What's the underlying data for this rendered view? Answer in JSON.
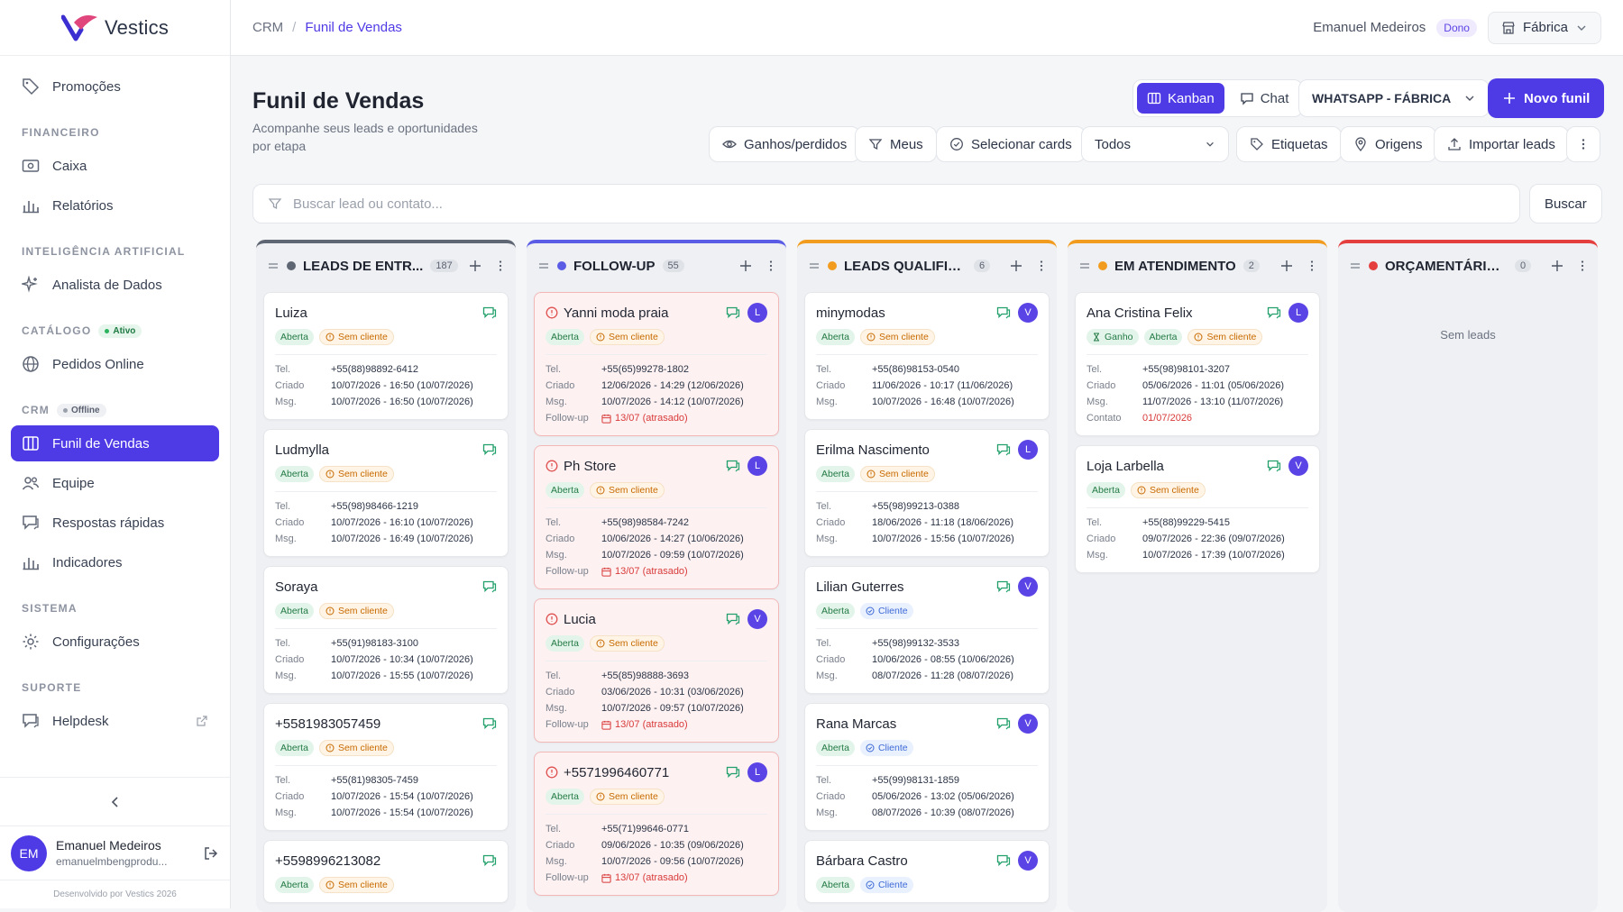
{
  "app": {
    "logo_text": "Vestics",
    "credit": "Desenvolvido por Vestics 2026"
  },
  "sidebar": {
    "items": [
      {
        "label": "Promoções",
        "icon": "tag-icon"
      },
      {
        "section": "FINANCEIRO"
      },
      {
        "label": "Caixa",
        "icon": "cash-icon"
      },
      {
        "label": "Relatórios",
        "icon": "bar-chart-icon"
      },
      {
        "section": "INTELIGÊNCIA ARTIFICIAL"
      },
      {
        "label": "Analista de Dados",
        "icon": "sparkles-icon"
      },
      {
        "section": "CATÁLOGO",
        "badge": "Ativo"
      },
      {
        "label": "Pedidos Online",
        "icon": "globe-icon"
      },
      {
        "section": "CRM",
        "badge": "Offline"
      },
      {
        "label": "Funil de Vendas",
        "icon": "kanban-icon",
        "active": true
      },
      {
        "label": "Equipe",
        "icon": "users-icon"
      },
      {
        "label": "Respostas rápidas",
        "icon": "message-icon"
      },
      {
        "label": "Indicadores",
        "icon": "bar-chart-icon"
      },
      {
        "section": "SISTEMA"
      },
      {
        "label": "Configurações",
        "icon": "gear-icon"
      },
      {
        "section": "SUPORTE"
      },
      {
        "label": "Helpdesk",
        "icon": "message-icon",
        "external": true
      }
    ],
    "user": {
      "initials": "EM",
      "name": "Emanuel Medeiros",
      "email": "emanuelmbengprodu..."
    }
  },
  "topbar": {
    "breadcrumb": [
      "CRM",
      "Funil de Vendas"
    ],
    "user_name": "Emanuel Medeiros",
    "role": "Dono",
    "store": "Fábrica"
  },
  "page": {
    "title": "Funil de Vendas",
    "subtitle": "Acompanhe seus leads e oportunidades por etapa",
    "view_kanban": "Kanban",
    "view_chat": "Chat",
    "funnel_select": "WHATSAPP - FÁBRICA",
    "new_funnel": "Novo funil",
    "filters": {
      "won_lost": "Ganhos/perdidos",
      "mine": "Meus",
      "select_cards": "Selecionar cards",
      "all": "Todos",
      "labels": "Etiquetas",
      "origins": "Origens",
      "import": "Importar leads"
    },
    "search_placeholder": "Buscar lead ou contato...",
    "search_button": "Buscar"
  },
  "labels": {
    "tel": "Tel.",
    "created": "Criado",
    "msg": "Msg.",
    "followup": "Follow-up",
    "contact": "Contato",
    "no_leads": "Sem leads"
  },
  "colors": {
    "accent": "#4f3be6",
    "chat": "#22a06b",
    "overdue": "#d93b3b"
  },
  "columns": [
    {
      "title": "LEADS DE ENTR...",
      "count": "187",
      "color": "#5f6673",
      "dot": "#5f6673",
      "cards": [
        {
          "name": "Luiza",
          "tags": [
            [
              "green",
              "Aberta"
            ],
            [
              "orange",
              "Sem cliente"
            ]
          ],
          "tel": "+55(88)98892-6412",
          "criado": "10/07/2026 - 16:50 (10/07/2026)",
          "msg": "10/07/2026 - 16:50 (10/07/2026)"
        },
        {
          "name": "Ludmylla",
          "tags": [
            [
              "green",
              "Aberta"
            ],
            [
              "orange",
              "Sem cliente"
            ]
          ],
          "tel": "+55(98)98466-1219",
          "criado": "10/07/2026 - 16:10 (10/07/2026)",
          "msg": "10/07/2026 - 16:49 (10/07/2026)"
        },
        {
          "name": "Soraya",
          "tags": [
            [
              "green",
              "Aberta"
            ],
            [
              "orange",
              "Sem cliente"
            ]
          ],
          "tel": "+55(91)98183-3100",
          "criado": "10/07/2026 - 10:34 (10/07/2026)",
          "msg": "10/07/2026 - 15:55 (10/07/2026)"
        },
        {
          "name": "+5581983057459",
          "tags": [
            [
              "green",
              "Aberta"
            ],
            [
              "orange",
              "Sem cliente"
            ]
          ],
          "tel": "+55(81)98305-7459",
          "criado": "10/07/2026 - 15:54 (10/07/2026)",
          "msg": "10/07/2026 - 15:54 (10/07/2026)"
        },
        {
          "name": "+5598996213082",
          "tags": [
            [
              "green",
              "Aberta"
            ],
            [
              "orange",
              "Sem cliente"
            ]
          ],
          "tel": "",
          "criado": "",
          "msg": ""
        }
      ]
    },
    {
      "title": "FOLLOW-UP",
      "count": "55",
      "color": "#5b5ce6",
      "dot": "#5b5ce6",
      "cards": [
        {
          "name": "Yanni moda praia",
          "fu": true,
          "avatar": "L",
          "tags": [
            [
              "green",
              "Aberta"
            ],
            [
              "orange",
              "Sem cliente"
            ]
          ],
          "tel": "+55(65)99278-1802",
          "criado": "12/06/2026 - 14:29 (12/06/2026)",
          "msg": "10/07/2026 - 14:12 (10/07/2026)",
          "followup": "13/07 (atrasado)"
        },
        {
          "name": "Ph Store",
          "fu": true,
          "avatar": "L",
          "tags": [
            [
              "green",
              "Aberta"
            ],
            [
              "orange",
              "Sem cliente"
            ]
          ],
          "tel": "+55(98)98584-7242",
          "criado": "10/06/2026 - 14:27 (10/06/2026)",
          "msg": "10/07/2026 - 09:59 (10/07/2026)",
          "followup": "13/07 (atrasado)"
        },
        {
          "name": "Lucia",
          "fu": true,
          "avatar": "V",
          "tags": [
            [
              "green",
              "Aberta"
            ],
            [
              "orange",
              "Sem cliente"
            ]
          ],
          "tel": "+55(85)98888-3693",
          "criado": "03/06/2026 - 10:31 (03/06/2026)",
          "msg": "10/07/2026 - 09:57 (10/07/2026)",
          "followup": "13/07 (atrasado)"
        },
        {
          "name": "+5571996460771",
          "fu": true,
          "avatar": "L",
          "tags": [
            [
              "green",
              "Aberta"
            ],
            [
              "orange",
              "Sem cliente"
            ]
          ],
          "tel": "+55(71)99646-0771",
          "criado": "09/06/2026 - 10:35 (09/06/2026)",
          "msg": "10/07/2026 - 09:56 (10/07/2026)",
          "followup": "13/07 (atrasado)"
        }
      ]
    },
    {
      "title": "LEADS QUALIFICA...",
      "count": "6",
      "color": "#f29c1f",
      "dot": "#f29c1f",
      "cards": [
        {
          "name": "minymodas",
          "avatar": "V",
          "tags": [
            [
              "green",
              "Aberta"
            ],
            [
              "orange",
              "Sem cliente"
            ]
          ],
          "tel": "+55(86)98153-0540",
          "criado": "11/06/2026 - 10:17 (11/06/2026)",
          "msg": "10/07/2026 - 16:48 (10/07/2026)"
        },
        {
          "name": "Erilma Nascimento",
          "avatar": "L",
          "tags": [
            [
              "green",
              "Aberta"
            ],
            [
              "orange",
              "Sem cliente"
            ]
          ],
          "tel": "+55(98)99213-0388",
          "criado": "18/06/2026 - 11:18 (18/06/2026)",
          "msg": "10/07/2026 - 15:56 (10/07/2026)"
        },
        {
          "name": "Lilian Guterres",
          "avatar": "V",
          "tags": [
            [
              "green",
              "Aberta"
            ],
            [
              "blue",
              "Cliente"
            ]
          ],
          "tel": "+55(98)99132-3533",
          "criado": "10/06/2026 - 08:55 (10/06/2026)",
          "msg": "08/07/2026 - 11:28 (08/07/2026)"
        },
        {
          "name": "Rana Marcas",
          "avatar": "V",
          "tags": [
            [
              "green",
              "Aberta"
            ],
            [
              "blue",
              "Cliente"
            ]
          ],
          "tel": "+55(99)98131-1859",
          "criado": "05/06/2026 - 13:02 (05/06/2026)",
          "msg": "08/07/2026 - 10:39 (08/07/2026)"
        },
        {
          "name": "Bárbara Castro",
          "avatar": "V",
          "tags": [
            [
              "green",
              "Aberta"
            ],
            [
              "blue",
              "Cliente"
            ]
          ],
          "tel": "",
          "criado": "",
          "msg": ""
        }
      ]
    },
    {
      "title": "EM ATENDIMENTO",
      "count": "2",
      "color": "#f29c1f",
      "dot": "#f29c1f",
      "cards": [
        {
          "name": "Ana Cristina Felix",
          "avatar": "L",
          "tags": [
            [
              "green",
              "Ganho"
            ],
            [
              "green",
              "Aberta"
            ],
            [
              "orange",
              "Sem cliente"
            ]
          ],
          "tel": "+55(98)98101-3207",
          "criado": "05/06/2026 - 11:01 (05/06/2026)",
          "msg": "11/07/2026 - 13:10 (11/07/2026)",
          "contato": "01/07/2026"
        },
        {
          "name": "Loja Larbella",
          "avatar": "V",
          "tags": [
            [
              "green",
              "Aberta"
            ],
            [
              "orange",
              "Sem cliente"
            ]
          ],
          "tel": "+55(88)99229-5415",
          "criado": "09/07/2026 - 22:36 (09/07/2026)",
          "msg": "10/07/2026 - 17:39 (10/07/2026)"
        }
      ]
    },
    {
      "title": "ORÇAMENTÁRIO - ...",
      "count": "0",
      "color": "#e53e3e",
      "dot": "#e53e3e",
      "cards": []
    }
  ]
}
